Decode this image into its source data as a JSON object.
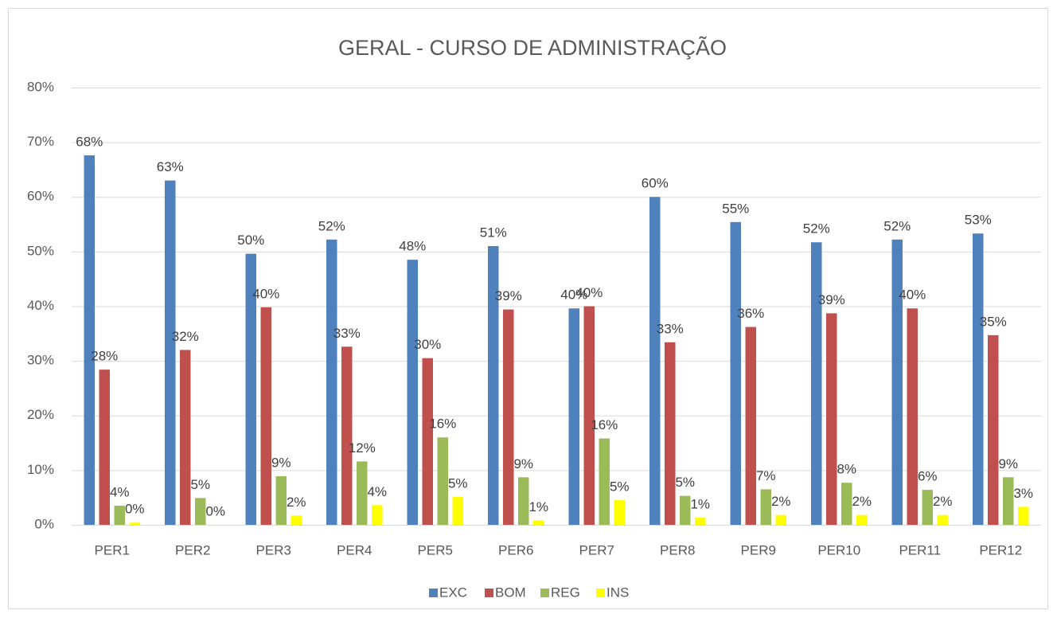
{
  "chart_data": {
    "type": "bar",
    "title": "GERAL - CURSO DE ADMINISTRAÇÃO",
    "categories": [
      "PER1",
      "PER2",
      "PER3",
      "PER4",
      "PER5",
      "PER6",
      "PER7",
      "PER8",
      "PER9",
      "PER10",
      "PER11",
      "PER12"
    ],
    "series": [
      {
        "name": "EXC",
        "color": "#4f81bd",
        "values": [
          67.6,
          63,
          49.6,
          52.2,
          48.5,
          51,
          39.6,
          60,
          55.4,
          51.7,
          52.2,
          53.3
        ],
        "value_labels": [
          "68%",
          "63%",
          "50%",
          "52%",
          "48%",
          "51%",
          "40%",
          "60%",
          "55%",
          "52%",
          "52%",
          "53%"
        ]
      },
      {
        "name": "BOM",
        "color": "#c0504d",
        "values": [
          28.4,
          32,
          39.8,
          32.6,
          30.5,
          39.4,
          40,
          33.4,
          36.2,
          38.7,
          39.6,
          34.7
        ],
        "value_labels": [
          "28%",
          "32%",
          "40%",
          "33%",
          "30%",
          "39%",
          "40%",
          "33%",
          "36%",
          "39%",
          "40%",
          "35%"
        ]
      },
      {
        "name": "REG",
        "color": "#9bbb59",
        "values": [
          3.5,
          4.9,
          8.9,
          11.6,
          16,
          8.7,
          15.8,
          5.3,
          6.5,
          7.7,
          6.4,
          8.7
        ],
        "value_labels": [
          "4%",
          "5%",
          "9%",
          "12%",
          "16%",
          "9%",
          "16%",
          "5%",
          "7%",
          "8%",
          "6%",
          "9%"
        ]
      },
      {
        "name": "INS",
        "color": "#ffff00",
        "values": [
          0.4,
          0,
          1.7,
          3.6,
          5.1,
          0.8,
          4.5,
          1.3,
          1.8,
          1.8,
          1.8,
          3.3
        ],
        "value_labels": [
          "0%",
          "0%",
          "2%",
          "4%",
          "5%",
          "1%",
          "5%",
          "1%",
          "2%",
          "2%",
          "2%",
          "3%"
        ]
      }
    ],
    "ylim": [
      0,
      80
    ],
    "yticks": [
      {
        "value": 0,
        "label": "0%"
      },
      {
        "value": 10,
        "label": "10%"
      },
      {
        "value": 20,
        "label": "20%"
      },
      {
        "value": 30,
        "label": "30%"
      },
      {
        "value": 40,
        "label": "40%"
      },
      {
        "value": 50,
        "label": "50%"
      },
      {
        "value": 60,
        "label": "60%"
      },
      {
        "value": 70,
        "label": "70%"
      },
      {
        "value": 80,
        "label": "80%"
      }
    ],
    "grid": true,
    "legend": "bottom"
  }
}
